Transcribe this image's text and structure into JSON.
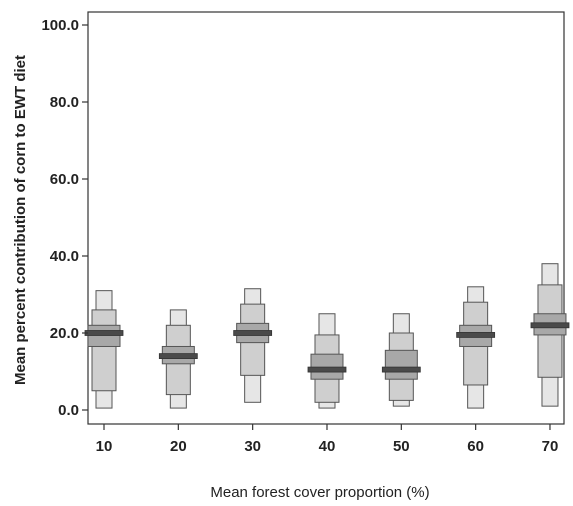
{
  "chart_data": {
    "type": "boxplot",
    "xlabel": "Mean forest cover proportion (%)",
    "ylabel": "Mean percent contribution of corn to EWT diet",
    "ylim": [
      0,
      100
    ],
    "yticks": [
      "0.0",
      "20.0",
      "40.0",
      "60.0",
      "80.0",
      "100.0"
    ],
    "grid": false,
    "colors": {
      "outer": "#e6e6e6",
      "middle": "#cfcfcf",
      "inner": "#a8a8a8",
      "median": "#4a4a4a",
      "edge": "#555555"
    },
    "categories": [
      "10",
      "20",
      "30",
      "40",
      "50",
      "60",
      "70"
    ],
    "series": [
      {
        "category": "10",
        "p2_5": 0.5,
        "p5": 5.0,
        "p25": 16.5,
        "median": 20.0,
        "p75": 22.0,
        "p95": 26.0,
        "p97_5": 31.0
      },
      {
        "category": "20",
        "p2_5": 0.5,
        "p5": 4.0,
        "p25": 12.0,
        "median": 14.0,
        "p75": 16.5,
        "p95": 22.0,
        "p97_5": 26.0
      },
      {
        "category": "30",
        "p2_5": 2.0,
        "p5": 9.0,
        "p25": 17.5,
        "median": 20.0,
        "p75": 22.5,
        "p95": 27.5,
        "p97_5": 31.5
      },
      {
        "category": "40",
        "p2_5": 0.5,
        "p5": 2.0,
        "p25": 8.0,
        "median": 10.5,
        "p75": 14.5,
        "p95": 19.5,
        "p97_5": 25.0
      },
      {
        "category": "50",
        "p2_5": 1.0,
        "p5": 2.5,
        "p25": 8.0,
        "median": 10.5,
        "p75": 15.5,
        "p95": 20.0,
        "p97_5": 25.0
      },
      {
        "category": "60",
        "p2_5": 0.5,
        "p5": 6.5,
        "p25": 16.5,
        "median": 19.5,
        "p75": 22.0,
        "p95": 28.0,
        "p97_5": 32.0
      },
      {
        "category": "70",
        "p2_5": 1.0,
        "p5": 8.5,
        "p25": 19.5,
        "median": 22.0,
        "p75": 25.0,
        "p95": 32.5,
        "p97_5": 38.0
      }
    ]
  }
}
